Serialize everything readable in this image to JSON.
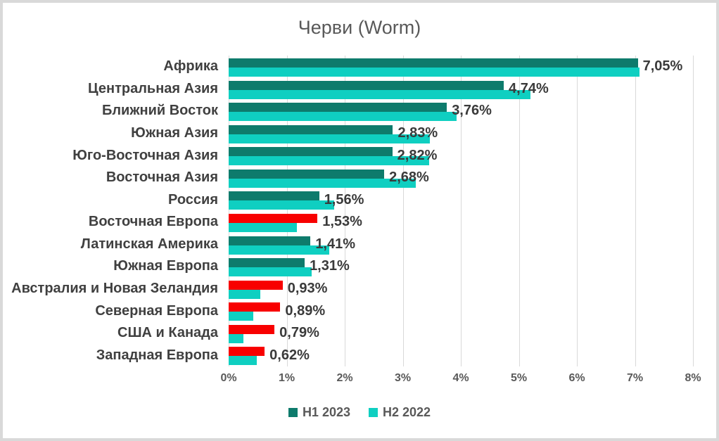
{
  "frame": {
    "border_color": "#d9d9d9",
    "background": "#ffffff"
  },
  "chart_data": {
    "type": "bar",
    "orientation": "horizontal",
    "title": "Черви (Worm)",
    "categories": [
      "Африка",
      "Центральная Азия",
      "Ближний Восток",
      "Южная Азия",
      "Юго-Восточная Азия",
      "Восточная Азия",
      "Россия",
      "Восточная Европа",
      "Латинская Америка",
      "Южная Европа",
      "Австралия и Новая Зеландия",
      "Северная Европа",
      "США и Канада",
      "Западная Европа"
    ],
    "series": [
      {
        "name": "H1 2023",
        "color": "#0e7b6c",
        "highlight_color": "#f80000",
        "values": [
          7.05,
          4.74,
          3.76,
          2.83,
          2.82,
          2.68,
          1.56,
          1.53,
          1.41,
          1.31,
          0.93,
          0.89,
          0.79,
          0.62
        ],
        "value_labels": [
          "7,05%",
          "4,74%",
          "3,76%",
          "2,83%",
          "2,82%",
          "2,68%",
          "1,56%",
          "1,53%",
          "1,41%",
          "1,31%",
          "0,93%",
          "0,89%",
          "0,79%",
          "0,62%"
        ],
        "highlighted_indices": [
          7,
          10,
          11,
          12,
          13
        ]
      },
      {
        "name": "H2 2022",
        "color": "#0fcfc1",
        "values": [
          7.08,
          5.2,
          3.93,
          3.47,
          3.45,
          3.23,
          1.82,
          1.17,
          1.73,
          1.43,
          0.55,
          0.42,
          0.25,
          0.48
        ]
      }
    ],
    "xlim": [
      0,
      8
    ],
    "x_ticks": [
      "0%",
      "1%",
      "2%",
      "3%",
      "4%",
      "5%",
      "6%",
      "7%",
      "8%"
    ],
    "grid": true,
    "gridline_color": "#d9d9d9",
    "legend_position": "bottom",
    "text_colors": {
      "title": "#595959",
      "category": "#404040",
      "value_label": "#3a3a3a",
      "tick": "#595959",
      "legend": "#595959"
    }
  }
}
